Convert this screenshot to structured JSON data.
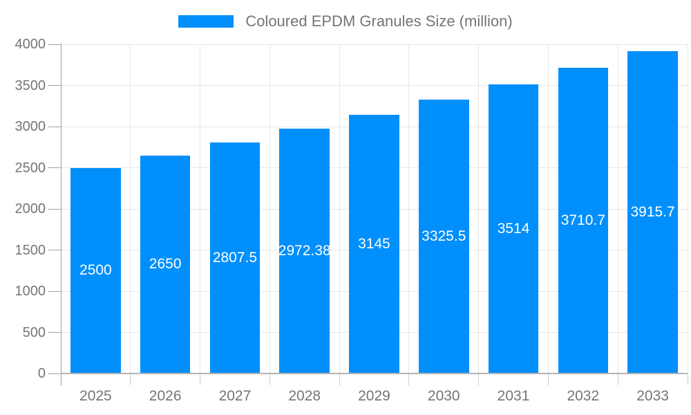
{
  "legend": {
    "label": "Coloured EPDM Granules Size (million)"
  },
  "chart_data": {
    "type": "bar",
    "title": "Coloured EPDM Granules Size (million)",
    "categories": [
      "2025",
      "2026",
      "2027",
      "2028",
      "2029",
      "2030",
      "2031",
      "2032",
      "2033"
    ],
    "values": [
      2500,
      2650,
      2807.5,
      2972.38,
      3145,
      3325.5,
      3514,
      3710.7,
      3915.7
    ],
    "value_labels": [
      "2500",
      "2650",
      "2807.5",
      "2972.38",
      "3145",
      "3325.5",
      "3514",
      "3710.7",
      "3915.7"
    ],
    "series": [
      {
        "name": "Coloured EPDM Granules Size (million)",
        "values": [
          2500,
          2650,
          2807.5,
          2972.38,
          3145,
          3325.5,
          3514,
          3710.7,
          3915.7
        ]
      }
    ],
    "xlabel": "",
    "ylabel": "",
    "ylim": [
      0,
      4000
    ],
    "y_ticks": [
      0,
      500,
      1000,
      1500,
      2000,
      2500,
      3000,
      3500,
      4000
    ],
    "grid": true,
    "legend_position": "top"
  },
  "colors": {
    "bar": "#008FFB",
    "value_label_text": "#ffffff",
    "grid_line": "#e6e6e6",
    "y_axis_line": "#9e9e9e",
    "x_axis_line": "#b3b3b3",
    "y_tick_line": "#9e9e9e",
    "x_tick_line": "#cccccc",
    "axis_text": "#757575",
    "legend_text": "#757575",
    "background": "#ffffff"
  }
}
